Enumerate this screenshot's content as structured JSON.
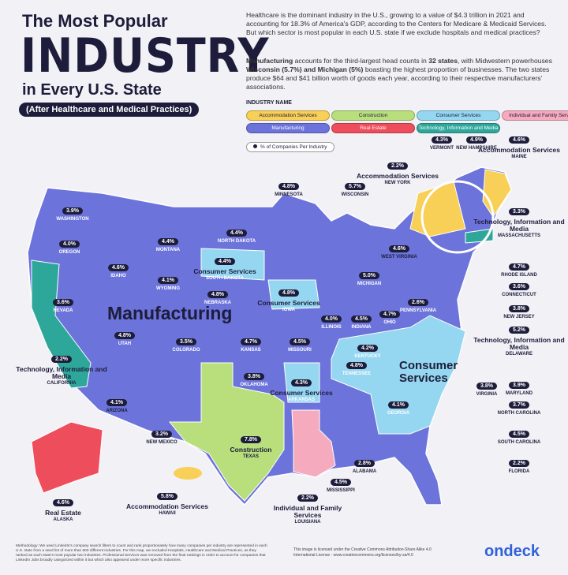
{
  "header": {
    "title_line1": "The Most Popular",
    "title_main": "INDUSTRY",
    "title_line3": "in Every U.S. State",
    "subtitle": "(After Healthcare and Medical Practices)"
  },
  "intro": {
    "p1": "Healthcare is the dominant industry in the U.S., growing to a value of $4.3 trillion in 2021 and accounting for 18.3% of America's GDP, according to the Centers for Medicare & Medicaid Services. But which sector is most popular in each U.S. state if we exclude hospitals and medical practices?",
    "p2_parts": [
      "Manufacturing",
      " accounts for the third-largest head counts in ",
      "32 states",
      ", with Midwestern powerhouses ",
      "Wisconsin (5.7%) and Michigan (5%)",
      " boasting the highest proportion of businesses. The two states produce $64 and $41 billion worth of goods each year, according to their respective manufacturers' associations."
    ]
  },
  "legend": {
    "heading": "INDUSTRY NAME",
    "items": [
      {
        "label": "Accommodation Services",
        "color": "#f8cf57"
      },
      {
        "label": "Construction",
        "color": "#b8df7c"
      },
      {
        "label": "Consumer Services",
        "color": "#95d6f0"
      },
      {
        "label": "Individual and Family Services",
        "color": "#f6aabd"
      },
      {
        "label": "Manufacturing",
        "color": "#6c73da"
      },
      {
        "label": "Real Estate",
        "color": "#ee4d5c"
      },
      {
        "label": "Technology, Information and Media",
        "color": "#2ea79b"
      }
    ],
    "pct_note": "% of Companies Per Industry"
  },
  "map": {
    "big_labels": [
      "Manufacturing",
      "Consumer Services"
    ],
    "states": [
      {
        "name": "WASHINGTON",
        "pct": "3.9%"
      },
      {
        "name": "OREGON",
        "pct": "4.0%"
      },
      {
        "name": "IDAHO",
        "pct": "4.6%"
      },
      {
        "name": "MONTANA",
        "pct": "4.4%"
      },
      {
        "name": "WYOMING",
        "pct": "4.1%"
      },
      {
        "name": "NORTH DAKOTA",
        "pct": "4.4%"
      },
      {
        "name": "SOUTH DAKOTA",
        "pct": "4.4%",
        "industry": "Consumer Services"
      },
      {
        "name": "MINNESOTA",
        "pct": "4.8%"
      },
      {
        "name": "WISCONSIN",
        "pct": "5.7%"
      },
      {
        "name": "MICHIGAN",
        "pct": "5.0%"
      },
      {
        "name": "NEVADA",
        "pct": "3.6%"
      },
      {
        "name": "UTAH",
        "pct": "4.8%"
      },
      {
        "name": "COLORADO",
        "pct": "3.5%"
      },
      {
        "name": "NEBRASKA",
        "pct": "4.8%"
      },
      {
        "name": "KANSAS",
        "pct": "4.7%"
      },
      {
        "name": "IOWA",
        "pct": "4.8%",
        "industry": "Consumer Services"
      },
      {
        "name": "MISSOURI",
        "pct": "4.5%"
      },
      {
        "name": "ILLINOIS",
        "pct": "4.0%"
      },
      {
        "name": "INDIANA",
        "pct": "4.5%"
      },
      {
        "name": "OHIO",
        "pct": "4.7%"
      },
      {
        "name": "WEST VIRGINIA",
        "pct": "4.6%"
      },
      {
        "name": "PENNSYLVANIA",
        "pct": "2.6%"
      },
      {
        "name": "CALIFORNIA",
        "pct": "2.2%",
        "industry": "Technology, Information and Media"
      },
      {
        "name": "ARIZONA",
        "pct": "4.1%"
      },
      {
        "name": "NEW MEXICO",
        "pct": "3.2%"
      },
      {
        "name": "OKLAHOMA",
        "pct": "3.8%"
      },
      {
        "name": "TEXAS",
        "pct": "7.8%",
        "industry": "Construction"
      },
      {
        "name": "ARKANSAS",
        "pct": "4.3%",
        "industry": "Consumer Services"
      },
      {
        "name": "LOUISIANA",
        "pct": "2.2%",
        "industry": "Individual and Family Services"
      },
      {
        "name": "MISSISSIPPI",
        "pct": "4.5%"
      },
      {
        "name": "ALABAMA",
        "pct": "2.8%"
      },
      {
        "name": "TENNESSEE",
        "pct": "4.8%"
      },
      {
        "name": "KENTUCKY",
        "pct": "4.2%"
      },
      {
        "name": "GEORGIA",
        "pct": "4.1%"
      },
      {
        "name": "VIRGINIA",
        "pct": "3.8%"
      },
      {
        "name": "ALASKA",
        "pct": "4.6%",
        "industry": "Real Estate"
      },
      {
        "name": "HAWAII",
        "pct": "5.8%",
        "industry": "Accommodation Services"
      },
      {
        "name": "VERMONT",
        "pct": "4.3%"
      },
      {
        "name": "NEW HAMPSHIRE",
        "pct": "4.9%"
      },
      {
        "name": "MAINE",
        "pct": "4.6%",
        "industry": "Accommodation Services"
      },
      {
        "name": "NEW YORK",
        "pct": "2.2%",
        "industry": "Accommodation Services"
      },
      {
        "name": "MASSACHUSETTS",
        "pct": "3.3%",
        "industry": "Technology, Information and Media"
      },
      {
        "name": "RHODE ISLAND",
        "pct": "4.7%"
      },
      {
        "name": "CONNECTICUT",
        "pct": "3.6%"
      },
      {
        "name": "NEW JERSEY",
        "pct": "3.8%"
      },
      {
        "name": "DELAWARE",
        "pct": "5.2%",
        "industry": "Technology, Information and Media"
      },
      {
        "name": "MARYLAND",
        "pct": "3.9%"
      },
      {
        "name": "NORTH CAROLINA",
        "pct": "3.7%"
      },
      {
        "name": "SOUTH CAROLINA",
        "pct": "4.5%"
      },
      {
        "name": "FLORIDA",
        "pct": "2.2%"
      }
    ]
  },
  "footer": {
    "methodology": "Methodology: We used LinkedIn's company search filters to count and rank proportionately how many companies per industry are represented in each U.S. state from a seed list of more than 500 different industries. For this map, we excluded Hospitals, Healthcare and Medical Practices, as they ranked as each state's most popular two industries. Professional Services was removed from the final rankings in order to account for companies that LinkedIn Jobs broadly categorized within it but which also appeared under more specific industries.",
    "license": "This image is licensed under the Creative Commons Attribution-Share Alike 4.0 International License - www.creativecommons.org/licenses/by-sa/4.0",
    "brand": "ondeck"
  }
}
